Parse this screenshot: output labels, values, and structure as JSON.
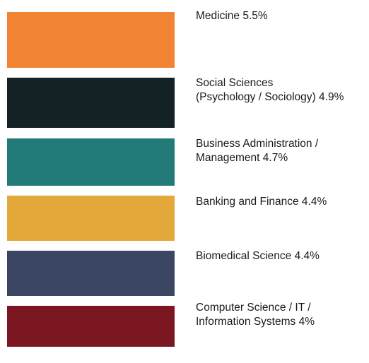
{
  "chart_data": {
    "type": "bar",
    "categories": [
      "Medicine",
      "Social Sciences (Psychology / Sociology)",
      "Business Administration / Management",
      "Banking and Finance",
      "Biomedical Science",
      "Computer Science / IT / Information Systems"
    ],
    "values": [
      5.5,
      4.9,
      4.7,
      4.4,
      4.4,
      4
    ],
    "unit": "%",
    "labels": [
      "Medicine 5.5%",
      "Social Sciences\n(Psychology / Sociology) 4.9%",
      "Business Administration /\nManagement 4.7%",
      "Banking and Finance 4.4%",
      "Biomedical Science 4.4%",
      "Computer Science / IT /\nInformation Systems 4%"
    ],
    "colors": [
      "#f08434",
      "#142125",
      "#237b79",
      "#e3a93b",
      "#3b4762",
      "#7a1720"
    ],
    "title": "",
    "legend": "right"
  }
}
